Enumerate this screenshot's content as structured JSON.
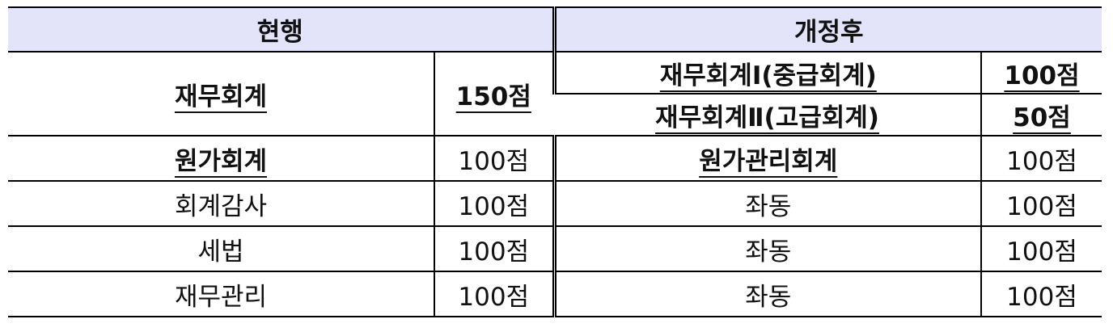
{
  "header": {
    "current": "현행",
    "revised": "개정후"
  },
  "rows": [
    {
      "current_subject": "재무회계",
      "current_score": "150점",
      "revised": [
        {
          "subject": "재무회계Ⅰ(중급회계)",
          "score": "100점"
        },
        {
          "subject": "재무회계Ⅱ(고급회계)",
          "score": "50점"
        }
      ]
    },
    {
      "current_subject": "원가회계",
      "current_score": "100점",
      "revised_subject": "원가관리회계",
      "revised_score": "100점"
    },
    {
      "current_subject": "회계감사",
      "current_score": "100점",
      "revised_subject": "좌동",
      "revised_score": "100점"
    },
    {
      "current_subject": "세법",
      "current_score": "100점",
      "revised_subject": "좌동",
      "revised_score": "100점"
    },
    {
      "current_subject": "재무관리",
      "current_score": "100점",
      "revised_subject": "좌동",
      "revised_score": "100점"
    }
  ]
}
